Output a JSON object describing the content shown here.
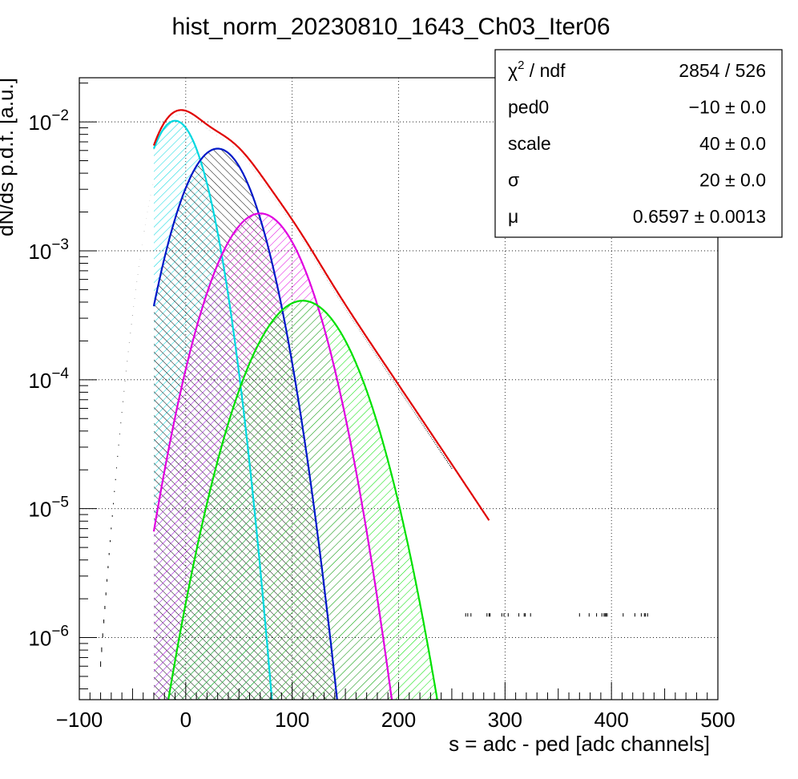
{
  "chart_data": {
    "type": "line",
    "title": "hist_norm_20230810_1643_Ch03_Iter06",
    "xlabel": "s = adc - ped [adc channels]",
    "ylabel": "dN/ds p.d.f. [a.u.]",
    "xlim": [
      -100,
      500
    ],
    "ylim": [
      3.3e-07,
      0.022
    ],
    "yscale": "log",
    "grid": true,
    "x_ticks": [
      "−100",
      "0",
      "100",
      "200",
      "300",
      "400",
      "500"
    ],
    "y_ticks": [
      {
        "base": "10",
        "exp": "−2"
      },
      {
        "base": "10",
        "exp": "−3"
      },
      {
        "base": "10",
        "exp": "−4"
      },
      {
        "base": "10",
        "exp": "−5"
      },
      {
        "base": "10",
        "exp": "−6"
      }
    ],
    "fit_params": {
      "ped0": -10,
      "scale": 40,
      "sigma": 20,
      "mu": 0.6597
    },
    "series": [
      {
        "color": "#00d8e0",
        "type": "gaussian",
        "x_start": -30,
        "peak_x": -10,
        "peak_y": 0.0102
      },
      {
        "color": "#0018c8",
        "type": "gaussian",
        "x_start": -30,
        "peak_x": 30,
        "peak_y": 0.0062
      },
      {
        "color": "#e000e0",
        "type": "gaussian",
        "x_start": -30,
        "peak_x": 70,
        "peak_y": 0.00195
      },
      {
        "color": "#00e000",
        "type": "gaussian",
        "x_start": -30,
        "peak_x": 110,
        "peak_y": 0.00041
      },
      {
        "color": "#e00000",
        "type": "total_fit",
        "x_start": -30,
        "x_end": 285,
        "peak_x": -5,
        "peak_y": 0.0115
      },
      {
        "color": "#000000",
        "type": "histogram",
        "x_start": -80,
        "x_end": 440,
        "peak_x": -5,
        "peak_y": 0.0105
      }
    ],
    "stats_box": {
      "rows": [
        {
          "label": "χ",
          "sup": "2",
          "label_rest": " / ndf",
          "value": "2854 / 526"
        },
        {
          "label": "ped0",
          "sup": "",
          "label_rest": "",
          "value": "−10 ± 0.0"
        },
        {
          "label": "scale",
          "sup": "",
          "label_rest": "",
          "value": "40 ± 0.0"
        },
        {
          "label": "σ",
          "sup": "",
          "label_rest": "",
          "value": "20 ± 0.0"
        },
        {
          "label": "μ",
          "sup": "",
          "label_rest": "",
          "value": "0.6597 ± 0.0013"
        }
      ]
    }
  }
}
